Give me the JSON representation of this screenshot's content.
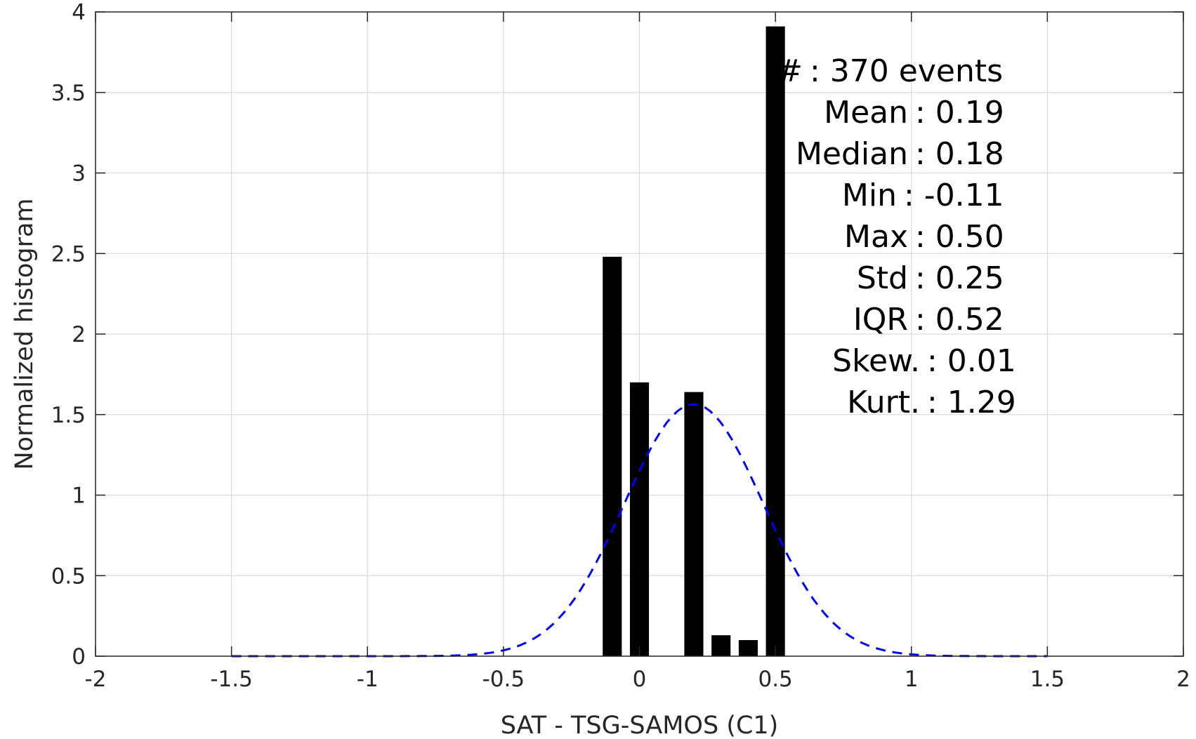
{
  "chart_data": {
    "type": "bar",
    "xlabel": "SAT - TSG-SAMOS (C1)",
    "ylabel": "Normalized histogram",
    "xlim": [
      -2,
      2
    ],
    "ylim": [
      0,
      4
    ],
    "xticks": [
      "-2",
      "-1.5",
      "-1",
      "-0.5",
      "0",
      "0.5",
      "1",
      "1.5",
      "2"
    ],
    "yticks": [
      "0",
      "0.5",
      "1",
      "1.5",
      "2",
      "2.5",
      "3",
      "3.5",
      "4"
    ],
    "grid": true,
    "bar_color": "#000000",
    "bar_width": 0.07,
    "bars": [
      {
        "x": -0.1,
        "value": 2.48
      },
      {
        "x": 0.0,
        "value": 1.7
      },
      {
        "x": 0.2,
        "value": 1.64
      },
      {
        "x": 0.3,
        "value": 0.13
      },
      {
        "x": 0.4,
        "value": 0.1
      },
      {
        "x": 0.5,
        "value": 3.91
      }
    ],
    "fit_curve": {
      "style": "dashed",
      "color": "#0000ff",
      "mean": 0.2,
      "std": 0.255,
      "x_range": [
        -1.5,
        1.5
      ]
    },
    "stats": [
      {
        "label": "#",
        "value": ": 370 events"
      },
      {
        "label": "Mean",
        "value": ": 0.19"
      },
      {
        "label": "Median",
        "value": ": 0.18"
      },
      {
        "label": "Min",
        "value": ": -0.11"
      },
      {
        "label": "Max",
        "value": ": 0.50"
      },
      {
        "label": "Std",
        "value": ": 0.25"
      },
      {
        "label": "IQR",
        "value": ": 0.52"
      },
      {
        "label": "Skew.",
        "value": ": 0.01"
      },
      {
        "label": "Kurt.",
        "value": ": 1.29"
      }
    ]
  }
}
